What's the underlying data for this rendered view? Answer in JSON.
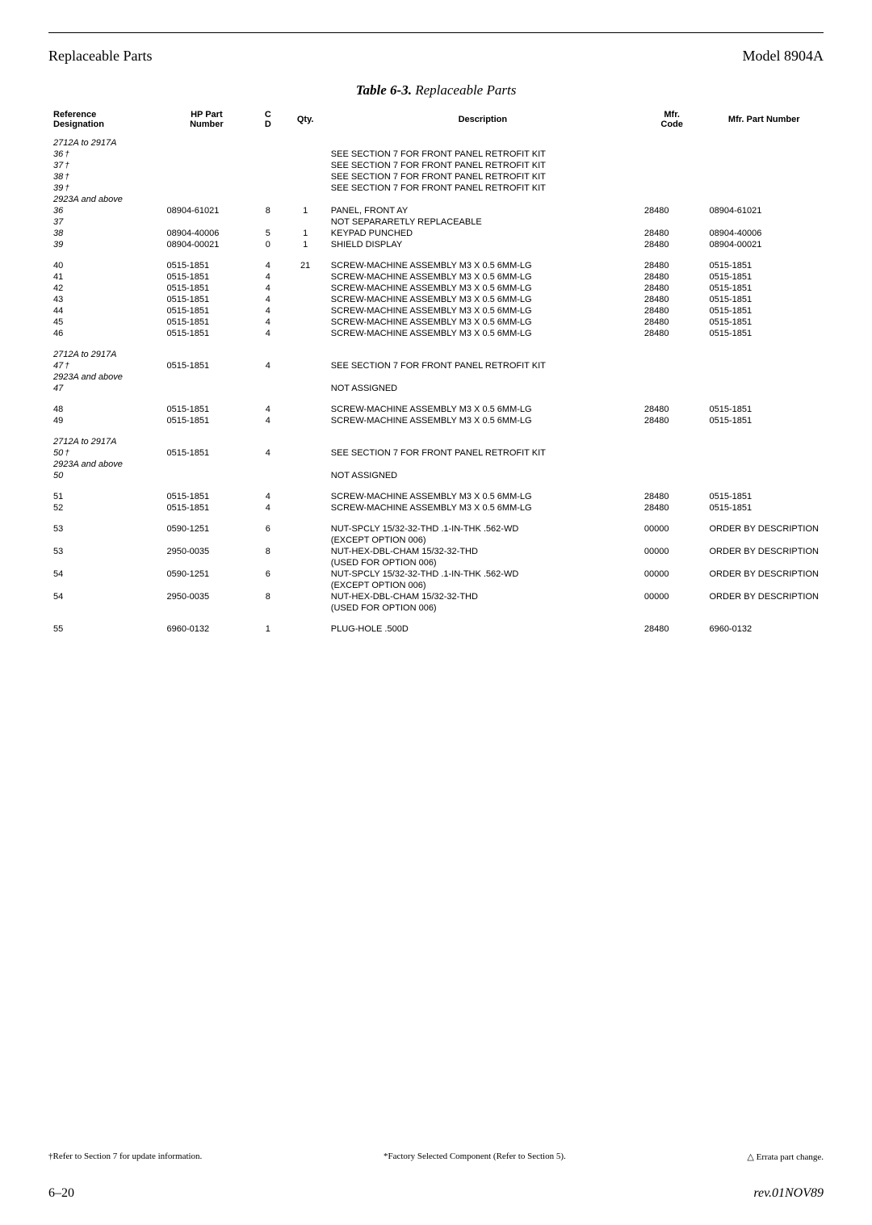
{
  "header": {
    "left": "Replaceable Parts",
    "right": "Model 8904A"
  },
  "table_title": {
    "bold": "Table 6-3.",
    "rest": " Replaceable Parts"
  },
  "columns": {
    "ref1": "Reference",
    "ref2": "Designation",
    "hp1": "HP Part",
    "hp2": "Number",
    "cd1": "C",
    "cd2": "D",
    "qty": "Qty.",
    "desc": "Description",
    "mfr1": "Mfr.",
    "mfr2": "Code",
    "mpn": "Mfr. Part Number"
  },
  "rows": [
    {
      "ref": "2712A to 2917A",
      "italic": true
    },
    {
      "ref": "36",
      "italic": true,
      "dagger": true,
      "desc": "SEE SECTION 7 FOR FRONT PANEL RETROFIT KIT"
    },
    {
      "ref": "37",
      "italic": true,
      "dagger": true,
      "desc": "SEE SECTION 7 FOR FRONT PANEL RETROFIT KIT"
    },
    {
      "ref": "38",
      "italic": true,
      "dagger": true,
      "desc": "SEE SECTION 7 FOR FRONT PANEL RETROFIT KIT"
    },
    {
      "ref": "39",
      "italic": true,
      "dagger": true,
      "desc": "SEE SECTION 7 FOR FRONT PANEL RETROFIT KIT"
    },
    {
      "ref": "2923A and above",
      "italic": true
    },
    {
      "ref": "36",
      "italic": true,
      "hp": "08904-61021",
      "cd": "8",
      "qty": "1",
      "desc": "PANEL, FRONT AY",
      "mfr": "28480",
      "mpn": "08904-61021"
    },
    {
      "ref": "37",
      "italic": true,
      "desc": "NOT SEPARARETLY REPLACEABLE"
    },
    {
      "ref": "38",
      "italic": true,
      "hp": "08904-40006",
      "cd": "5",
      "qty": "1",
      "desc": "KEYPAD PUNCHED",
      "mfr": "28480",
      "mpn": "08904-40006"
    },
    {
      "ref": "39",
      "italic": true,
      "hp": "08904-00021",
      "cd": "0",
      "qty": "1",
      "desc": "SHIELD DISPLAY",
      "mfr": "28480",
      "mpn": "08904-00021"
    },
    {
      "spacer": true
    },
    {
      "ref": "40",
      "hp": "0515-1851",
      "cd": "4",
      "qty": "21",
      "desc": "SCREW-MACHINE ASSEMBLY M3 X 0.5 6MM-LG",
      "mfr": "28480",
      "mpn": "0515-1851"
    },
    {
      "ref": "41",
      "hp": "0515-1851",
      "cd": "4",
      "desc": "SCREW-MACHINE ASSEMBLY M3 X 0.5 6MM-LG",
      "mfr": "28480",
      "mpn": "0515-1851"
    },
    {
      "ref": "42",
      "hp": "0515-1851",
      "cd": "4",
      "desc": "SCREW-MACHINE ASSEMBLY M3 X 0.5 6MM-LG",
      "mfr": "28480",
      "mpn": "0515-1851"
    },
    {
      "ref": "43",
      "hp": "0515-1851",
      "cd": "4",
      "desc": "SCREW-MACHINE ASSEMBLY M3 X 0.5 6MM-LG",
      "mfr": "28480",
      "mpn": "0515-1851"
    },
    {
      "ref": "44",
      "hp": "0515-1851",
      "cd": "4",
      "desc": "SCREW-MACHINE ASSEMBLY M3 X 0.5 6MM-LG",
      "mfr": "28480",
      "mpn": "0515-1851"
    },
    {
      "ref": "45",
      "hp": "0515-1851",
      "cd": "4",
      "desc": "SCREW-MACHINE ASSEMBLY M3 X 0.5 6MM-LG",
      "mfr": "28480",
      "mpn": "0515-1851"
    },
    {
      "ref": "46",
      "hp": "0515-1851",
      "cd": "4",
      "desc": "SCREW-MACHINE ASSEMBLY M3 X 0.5 6MM-LG",
      "mfr": "28480",
      "mpn": "0515-1851"
    },
    {
      "spacer": true
    },
    {
      "ref": "2712A to 2917A",
      "italic": true
    },
    {
      "ref": "47",
      "italic": true,
      "dagger": true,
      "hp": "0515-1851",
      "cd": "4",
      "desc": "SEE SECTION 7 FOR FRONT PANEL RETROFIT KIT"
    },
    {
      "ref": "2923A and above",
      "italic": true
    },
    {
      "ref": "47",
      "italic": true,
      "desc": "NOT ASSIGNED"
    },
    {
      "spacer": true
    },
    {
      "ref": "48",
      "hp": "0515-1851",
      "cd": "4",
      "desc": "SCREW-MACHINE ASSEMBLY M3 X 0.5 6MM-LG",
      "mfr": "28480",
      "mpn": "0515-1851"
    },
    {
      "ref": "49",
      "hp": "0515-1851",
      "cd": "4",
      "desc": "SCREW-MACHINE ASSEMBLY M3 X 0.5 6MM-LG",
      "mfr": "28480",
      "mpn": "0515-1851"
    },
    {
      "spacer": true
    },
    {
      "ref": "2712A to 2917A",
      "italic": true
    },
    {
      "ref": "50",
      "italic": true,
      "dagger": true,
      "hp": "0515-1851",
      "cd": "4",
      "desc": "SEE SECTION 7 FOR FRONT PANEL RETROFIT KIT"
    },
    {
      "ref": "2923A and above",
      "italic": true
    },
    {
      "ref": "50",
      "italic": true,
      "desc": "NOT ASSIGNED"
    },
    {
      "spacer": true
    },
    {
      "ref": "51",
      "hp": "0515-1851",
      "cd": "4",
      "desc": "SCREW-MACHINE ASSEMBLY M3 X 0.5 6MM-LG",
      "mfr": "28480",
      "mpn": "0515-1851"
    },
    {
      "ref": "52",
      "hp": "0515-1851",
      "cd": "4",
      "desc": "SCREW-MACHINE ASSEMBLY M3 X 0.5 6MM-LG",
      "mfr": "28480",
      "mpn": "0515-1851"
    },
    {
      "spacer": true
    },
    {
      "ref": "53",
      "hp": "0590-1251",
      "cd": "6",
      "desc": "NUT-SPCLY 15/32-32-THD .1-IN-THK .562-WD",
      "mfr": "00000",
      "mpn": "ORDER BY DESCRIPTION"
    },
    {
      "desc": "(EXCEPT OPTION 006)"
    },
    {
      "ref": "53",
      "hp": "2950-0035",
      "cd": "8",
      "desc": "NUT-HEX-DBL-CHAM 15/32-32-THD",
      "mfr": "00000",
      "mpn": "ORDER BY DESCRIPTION"
    },
    {
      "desc": "(USED FOR OPTION 006)"
    },
    {
      "ref": "54",
      "hp": "0590-1251",
      "cd": "6",
      "desc": "NUT-SPCLY 15/32-32-THD .1-IN-THK .562-WD",
      "mfr": "00000",
      "mpn": "ORDER BY DESCRIPTION"
    },
    {
      "desc": "(EXCEPT OPTION 006)"
    },
    {
      "ref": "54",
      "hp": "2950-0035",
      "cd": "8",
      "desc": "NUT-HEX-DBL-CHAM 15/32-32-THD",
      "mfr": "00000",
      "mpn": "ORDER BY DESCRIPTION"
    },
    {
      "desc": "(USED FOR OPTION 006)"
    },
    {
      "spacer": true
    },
    {
      "ref": "55",
      "hp": "6960-0132",
      "cd": "1",
      "desc": "PLUG-HOLE .500D",
      "mfr": "28480",
      "mpn": "6960-0132"
    }
  ],
  "footnotes": {
    "left": "†Refer to Section 7 for update information.",
    "center": "*Factory Selected Component (Refer to Section 5).",
    "right": "△ Errata part change."
  },
  "page_footer": {
    "left": "6–20",
    "right": "rev.01NOV89"
  }
}
